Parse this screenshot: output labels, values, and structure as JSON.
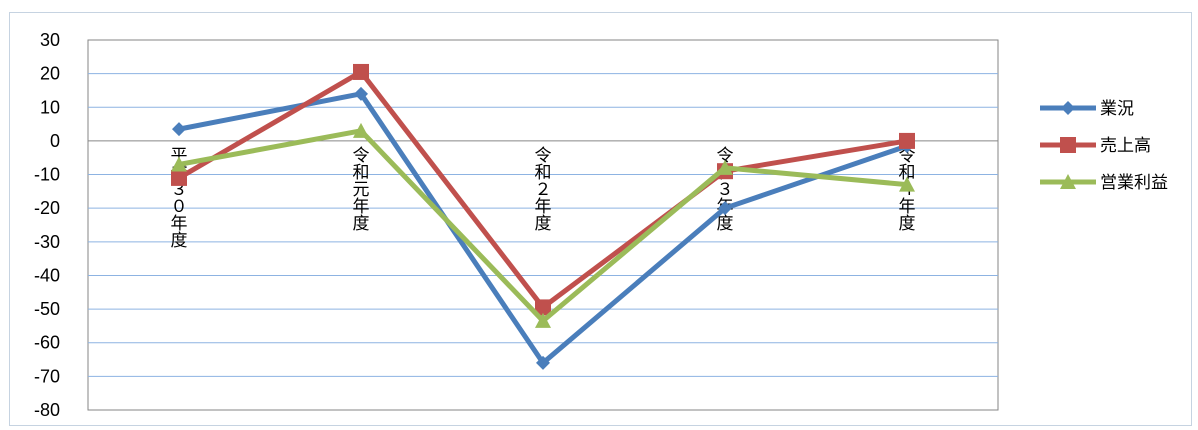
{
  "chart_data": {
    "type": "line",
    "categories": [
      "平成３０年度",
      "令和元年度",
      "令和２年度",
      "令和３年度",
      "令和４年度"
    ],
    "series": [
      {
        "name": "業況",
        "values": [
          3.5,
          14,
          -66,
          -20,
          -1.5
        ],
        "color": "#4a7ebb",
        "marker": "diamond"
      },
      {
        "name": "売上高",
        "values": [
          -11,
          20.5,
          -49.5,
          -9,
          0
        ],
        "color": "#c0504d",
        "marker": "square"
      },
      {
        "name": "営業利益",
        "values": [
          -7,
          3,
          -53.5,
          -8,
          -13
        ],
        "color": "#9bbb59",
        "marker": "triangle"
      }
    ],
    "ylim": [
      -80,
      30
    ],
    "yticks": [
      30,
      20,
      10,
      0,
      -10,
      -20,
      -30,
      -40,
      -50,
      -60,
      -70,
      -80
    ],
    "grid": true,
    "legend_position": "right",
    "title": "",
    "xlabel": "",
    "ylabel": ""
  }
}
